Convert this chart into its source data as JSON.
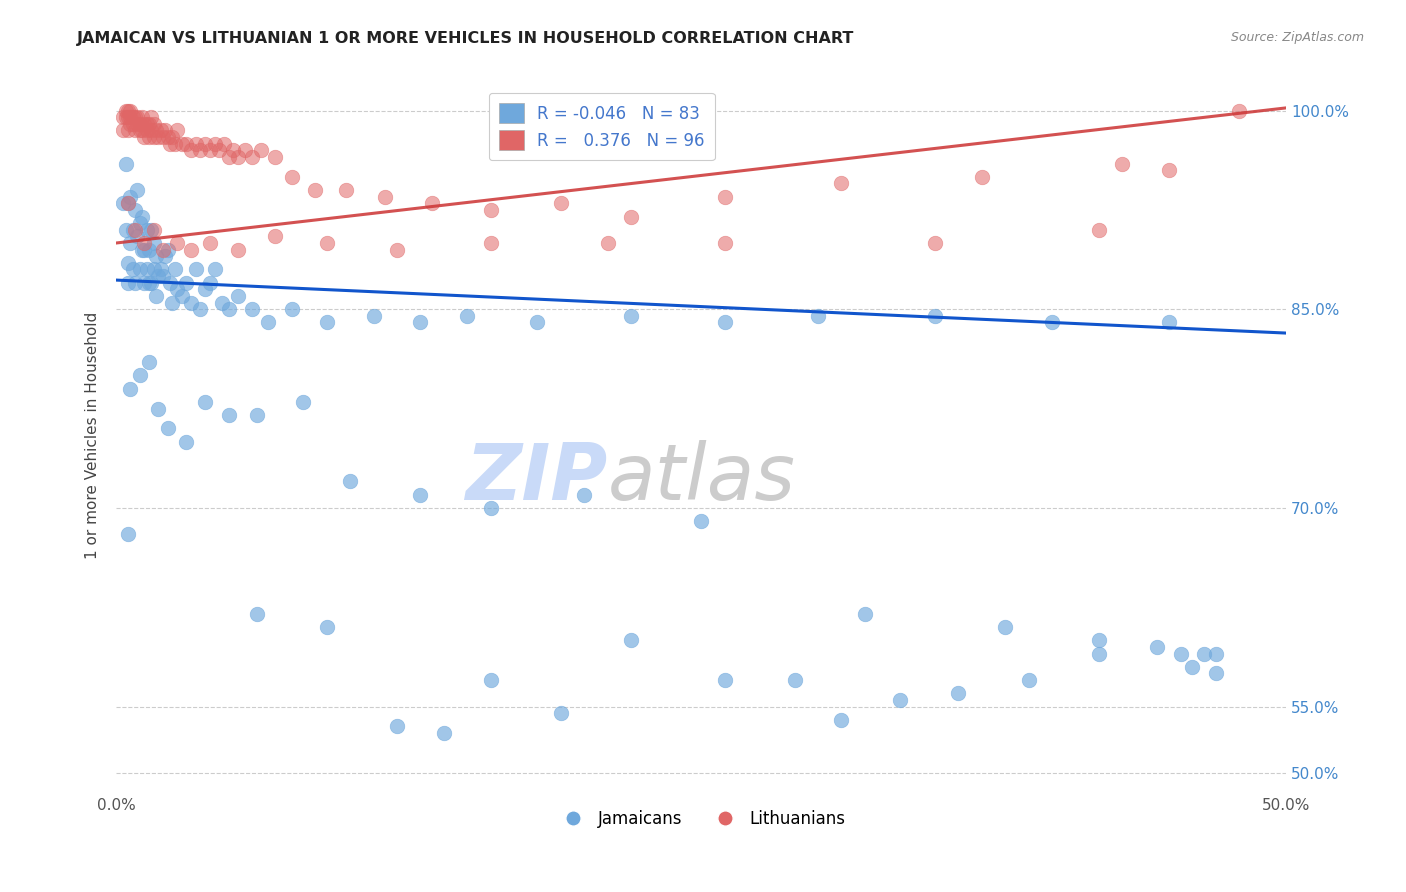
{
  "title": "JAMAICAN VS LITHUANIAN 1 OR MORE VEHICLES IN HOUSEHOLD CORRELATION CHART",
  "source": "Source: ZipAtlas.com",
  "ylabel": "1 or more Vehicles in Household",
  "ytick_labels": [
    "50.0%",
    "55.0%",
    "70.0%",
    "85.0%",
    "100.0%"
  ],
  "ytick_values": [
    0.5,
    0.55,
    0.7,
    0.85,
    1.0
  ],
  "xlim": [
    0.0,
    0.5
  ],
  "ylim": [
    0.485,
    1.025
  ],
  "legend_blue_r": "R = -0.046",
  "legend_blue_n": "N = 83",
  "legend_pink_r": "R =  0.376",
  "legend_pink_n": "N = 96",
  "blue_color": "#6fa8dc",
  "pink_color": "#e06666",
  "blue_line_color": "#1155cc",
  "pink_line_color": "#cc3333",
  "watermark_zip_color": "#cfe2f3",
  "watermark_atlas_color": "#d9d9d9",
  "background_color": "#ffffff",
  "blue_line_y0": 0.872,
  "blue_line_y1": 0.832,
  "pink_line_y0": 0.9,
  "pink_line_y1": 1.002,
  "jamaican_x": [
    0.003,
    0.004,
    0.004,
    0.005,
    0.005,
    0.005,
    0.006,
    0.006,
    0.007,
    0.007,
    0.008,
    0.008,
    0.009,
    0.009,
    0.01,
    0.01,
    0.011,
    0.011,
    0.012,
    0.012,
    0.013,
    0.013,
    0.014,
    0.014,
    0.015,
    0.015,
    0.016,
    0.016,
    0.017,
    0.017,
    0.018,
    0.019,
    0.02,
    0.021,
    0.022,
    0.023,
    0.024,
    0.025,
    0.026,
    0.028,
    0.03,
    0.032,
    0.034,
    0.036,
    0.038,
    0.04,
    0.042,
    0.045,
    0.048,
    0.052,
    0.058,
    0.065,
    0.075,
    0.09,
    0.11,
    0.13,
    0.15,
    0.18,
    0.22,
    0.26,
    0.3,
    0.35,
    0.4,
    0.45,
    0.006,
    0.01,
    0.014,
    0.018,
    0.022,
    0.03,
    0.038,
    0.048,
    0.06,
    0.08,
    0.1,
    0.13,
    0.16,
    0.2,
    0.25,
    0.32,
    0.38,
    0.42,
    0.47
  ],
  "jamaican_y": [
    0.93,
    0.91,
    0.96,
    0.885,
    0.93,
    0.87,
    0.9,
    0.935,
    0.91,
    0.88,
    0.925,
    0.87,
    0.905,
    0.94,
    0.88,
    0.915,
    0.895,
    0.92,
    0.87,
    0.895,
    0.88,
    0.91,
    0.87,
    0.895,
    0.91,
    0.87,
    0.9,
    0.88,
    0.86,
    0.89,
    0.875,
    0.88,
    0.875,
    0.89,
    0.895,
    0.87,
    0.855,
    0.88,
    0.865,
    0.86,
    0.87,
    0.855,
    0.88,
    0.85,
    0.865,
    0.87,
    0.88,
    0.855,
    0.85,
    0.86,
    0.85,
    0.84,
    0.85,
    0.84,
    0.845,
    0.84,
    0.845,
    0.84,
    0.845,
    0.84,
    0.845,
    0.845,
    0.84,
    0.84,
    0.79,
    0.8,
    0.81,
    0.775,
    0.76,
    0.75,
    0.78,
    0.77,
    0.77,
    0.78,
    0.72,
    0.71,
    0.7,
    0.71,
    0.69,
    0.62,
    0.61,
    0.6,
    0.59
  ],
  "jamaican_y_low": [
    0.68,
    0.62,
    0.61,
    0.535,
    0.53,
    0.57,
    0.545,
    0.6,
    0.57,
    0.57,
    0.54,
    0.555,
    0.56,
    0.57,
    0.59,
    0.595,
    0.59,
    0.58,
    0.59,
    0.575
  ],
  "jamaican_x_low": [
    0.005,
    0.06,
    0.09,
    0.12,
    0.14,
    0.16,
    0.19,
    0.22,
    0.26,
    0.29,
    0.31,
    0.335,
    0.36,
    0.39,
    0.42,
    0.445,
    0.455,
    0.46,
    0.465,
    0.47
  ],
  "lithuanian_x": [
    0.003,
    0.003,
    0.004,
    0.004,
    0.005,
    0.005,
    0.005,
    0.006,
    0.006,
    0.006,
    0.007,
    0.007,
    0.008,
    0.008,
    0.009,
    0.009,
    0.01,
    0.01,
    0.011,
    0.011,
    0.012,
    0.012,
    0.013,
    0.013,
    0.014,
    0.014,
    0.015,
    0.015,
    0.016,
    0.016,
    0.017,
    0.018,
    0.019,
    0.02,
    0.021,
    0.022,
    0.023,
    0.024,
    0.025,
    0.026,
    0.028,
    0.03,
    0.032,
    0.034,
    0.036,
    0.038,
    0.04,
    0.042,
    0.044,
    0.046,
    0.048,
    0.05,
    0.052,
    0.055,
    0.058,
    0.062,
    0.068,
    0.075,
    0.085,
    0.098,
    0.115,
    0.135,
    0.16,
    0.19,
    0.22,
    0.26,
    0.31,
    0.37,
    0.43,
    0.48
  ],
  "lithuanian_y": [
    0.995,
    0.985,
    0.995,
    1.0,
    0.985,
    0.995,
    1.0,
    0.99,
    0.995,
    1.0,
    0.99,
    0.995,
    0.985,
    0.995,
    0.99,
    0.995,
    0.985,
    0.99,
    0.985,
    0.995,
    0.98,
    0.99,
    0.985,
    0.99,
    0.98,
    0.99,
    0.985,
    0.995,
    0.98,
    0.99,
    0.985,
    0.98,
    0.985,
    0.98,
    0.985,
    0.98,
    0.975,
    0.98,
    0.975,
    0.985,
    0.975,
    0.975,
    0.97,
    0.975,
    0.97,
    0.975,
    0.97,
    0.975,
    0.97,
    0.975,
    0.965,
    0.97,
    0.965,
    0.97,
    0.965,
    0.97,
    0.965,
    0.95,
    0.94,
    0.94,
    0.935,
    0.93,
    0.925,
    0.93,
    0.92,
    0.935,
    0.945,
    0.95,
    0.96,
    1.0
  ],
  "lithuanian_x_mid": [
    0.005,
    0.008,
    0.012,
    0.016,
    0.02,
    0.026,
    0.032,
    0.04,
    0.052,
    0.068,
    0.09,
    0.12,
    0.16,
    0.21,
    0.26,
    0.35,
    0.42,
    0.45
  ],
  "lithuanian_y_mid": [
    0.93,
    0.91,
    0.9,
    0.91,
    0.895,
    0.9,
    0.895,
    0.9,
    0.895,
    0.905,
    0.9,
    0.895,
    0.9,
    0.9,
    0.9,
    0.9,
    0.91,
    0.955
  ]
}
